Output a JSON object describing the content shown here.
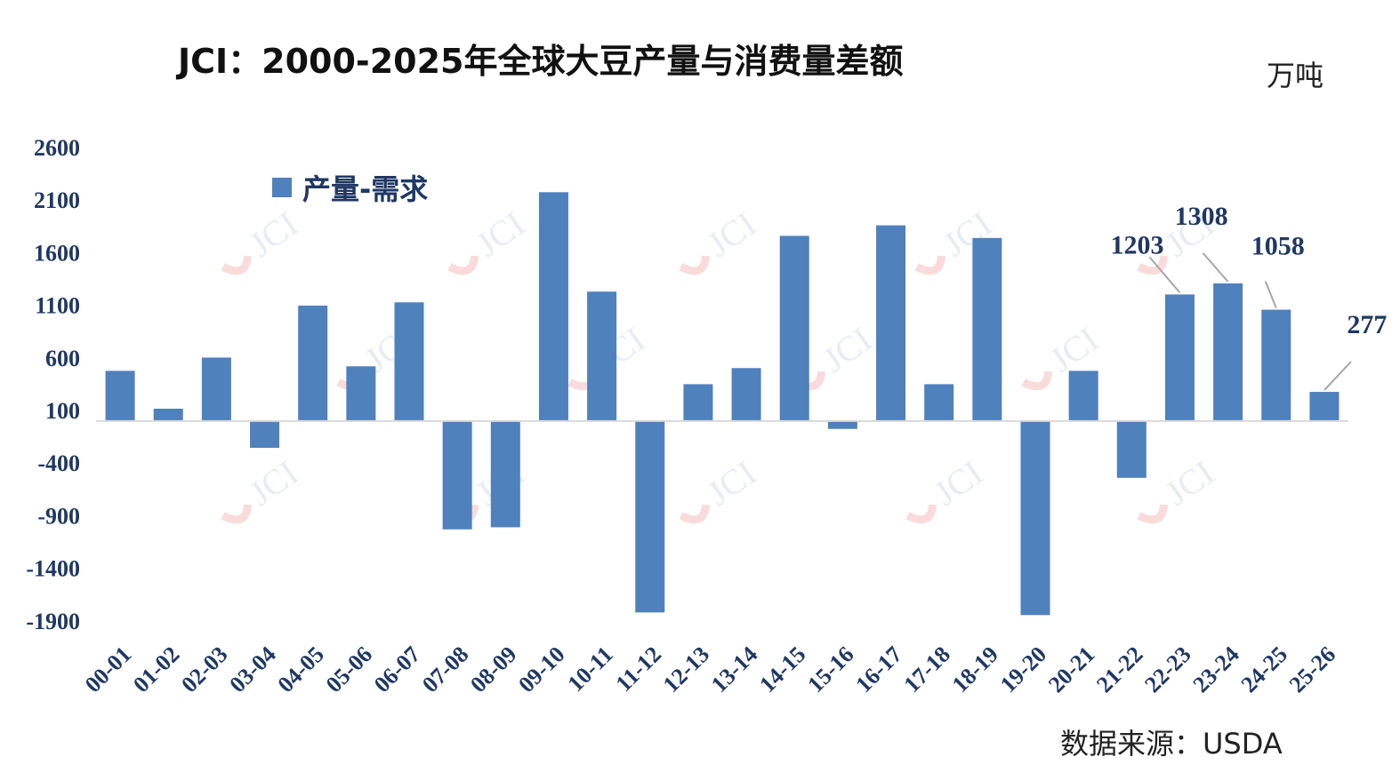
{
  "title": "JCI：2000-2025年全球大豆产量与消费量差额",
  "unit": "万吨",
  "source": "数据来源：USDA",
  "watermark": "JCI",
  "colors": {
    "bar": "#4f81bd",
    "axis_text": "#1f3864",
    "zero_line": "#d9d9d9",
    "leader_line": "#a6a6a6"
  },
  "chart_data": {
    "type": "bar",
    "title": "JCI：2000-2025年全球大豆产量与消费量差额",
    "xlabel": "",
    "ylabel": "",
    "unit": "万吨",
    "ylim": [
      -2000,
      2600
    ],
    "yticks": [
      2600,
      2100,
      1600,
      1100,
      600,
      100,
      -400,
      -900,
      -1400,
      -1900
    ],
    "grid": false,
    "legend_position": "top-left",
    "categories": [
      "00-01",
      "01-02",
      "02-03",
      "03-04",
      "04-05",
      "05-06",
      "06-07",
      "07-08",
      "08-09",
      "09-10",
      "10-11",
      "11-12",
      "12-13",
      "13-14",
      "14-15",
      "15-16",
      "16-17",
      "17-18",
      "18-19",
      "19-20",
      "20-21",
      "21-22",
      "22-23",
      "23-24",
      "24-25",
      "25-26"
    ],
    "series": [
      {
        "name": "产量-需求",
        "values": [
          477,
          117,
          603,
          -255,
          1097,
          520,
          1128,
          -1030,
          -1010,
          2175,
          1230,
          -1820,
          350,
          503,
          1760,
          -75,
          1860,
          350,
          1740,
          -1845,
          477,
          -540,
          1203,
          1308,
          1058,
          277
        ]
      }
    ],
    "data_labels": [
      {
        "category": "22-23",
        "text": "1203"
      },
      {
        "category": "23-24",
        "text": "1308"
      },
      {
        "category": "24-25",
        "text": "1058"
      },
      {
        "category": "25-26",
        "text": "277"
      }
    ]
  }
}
